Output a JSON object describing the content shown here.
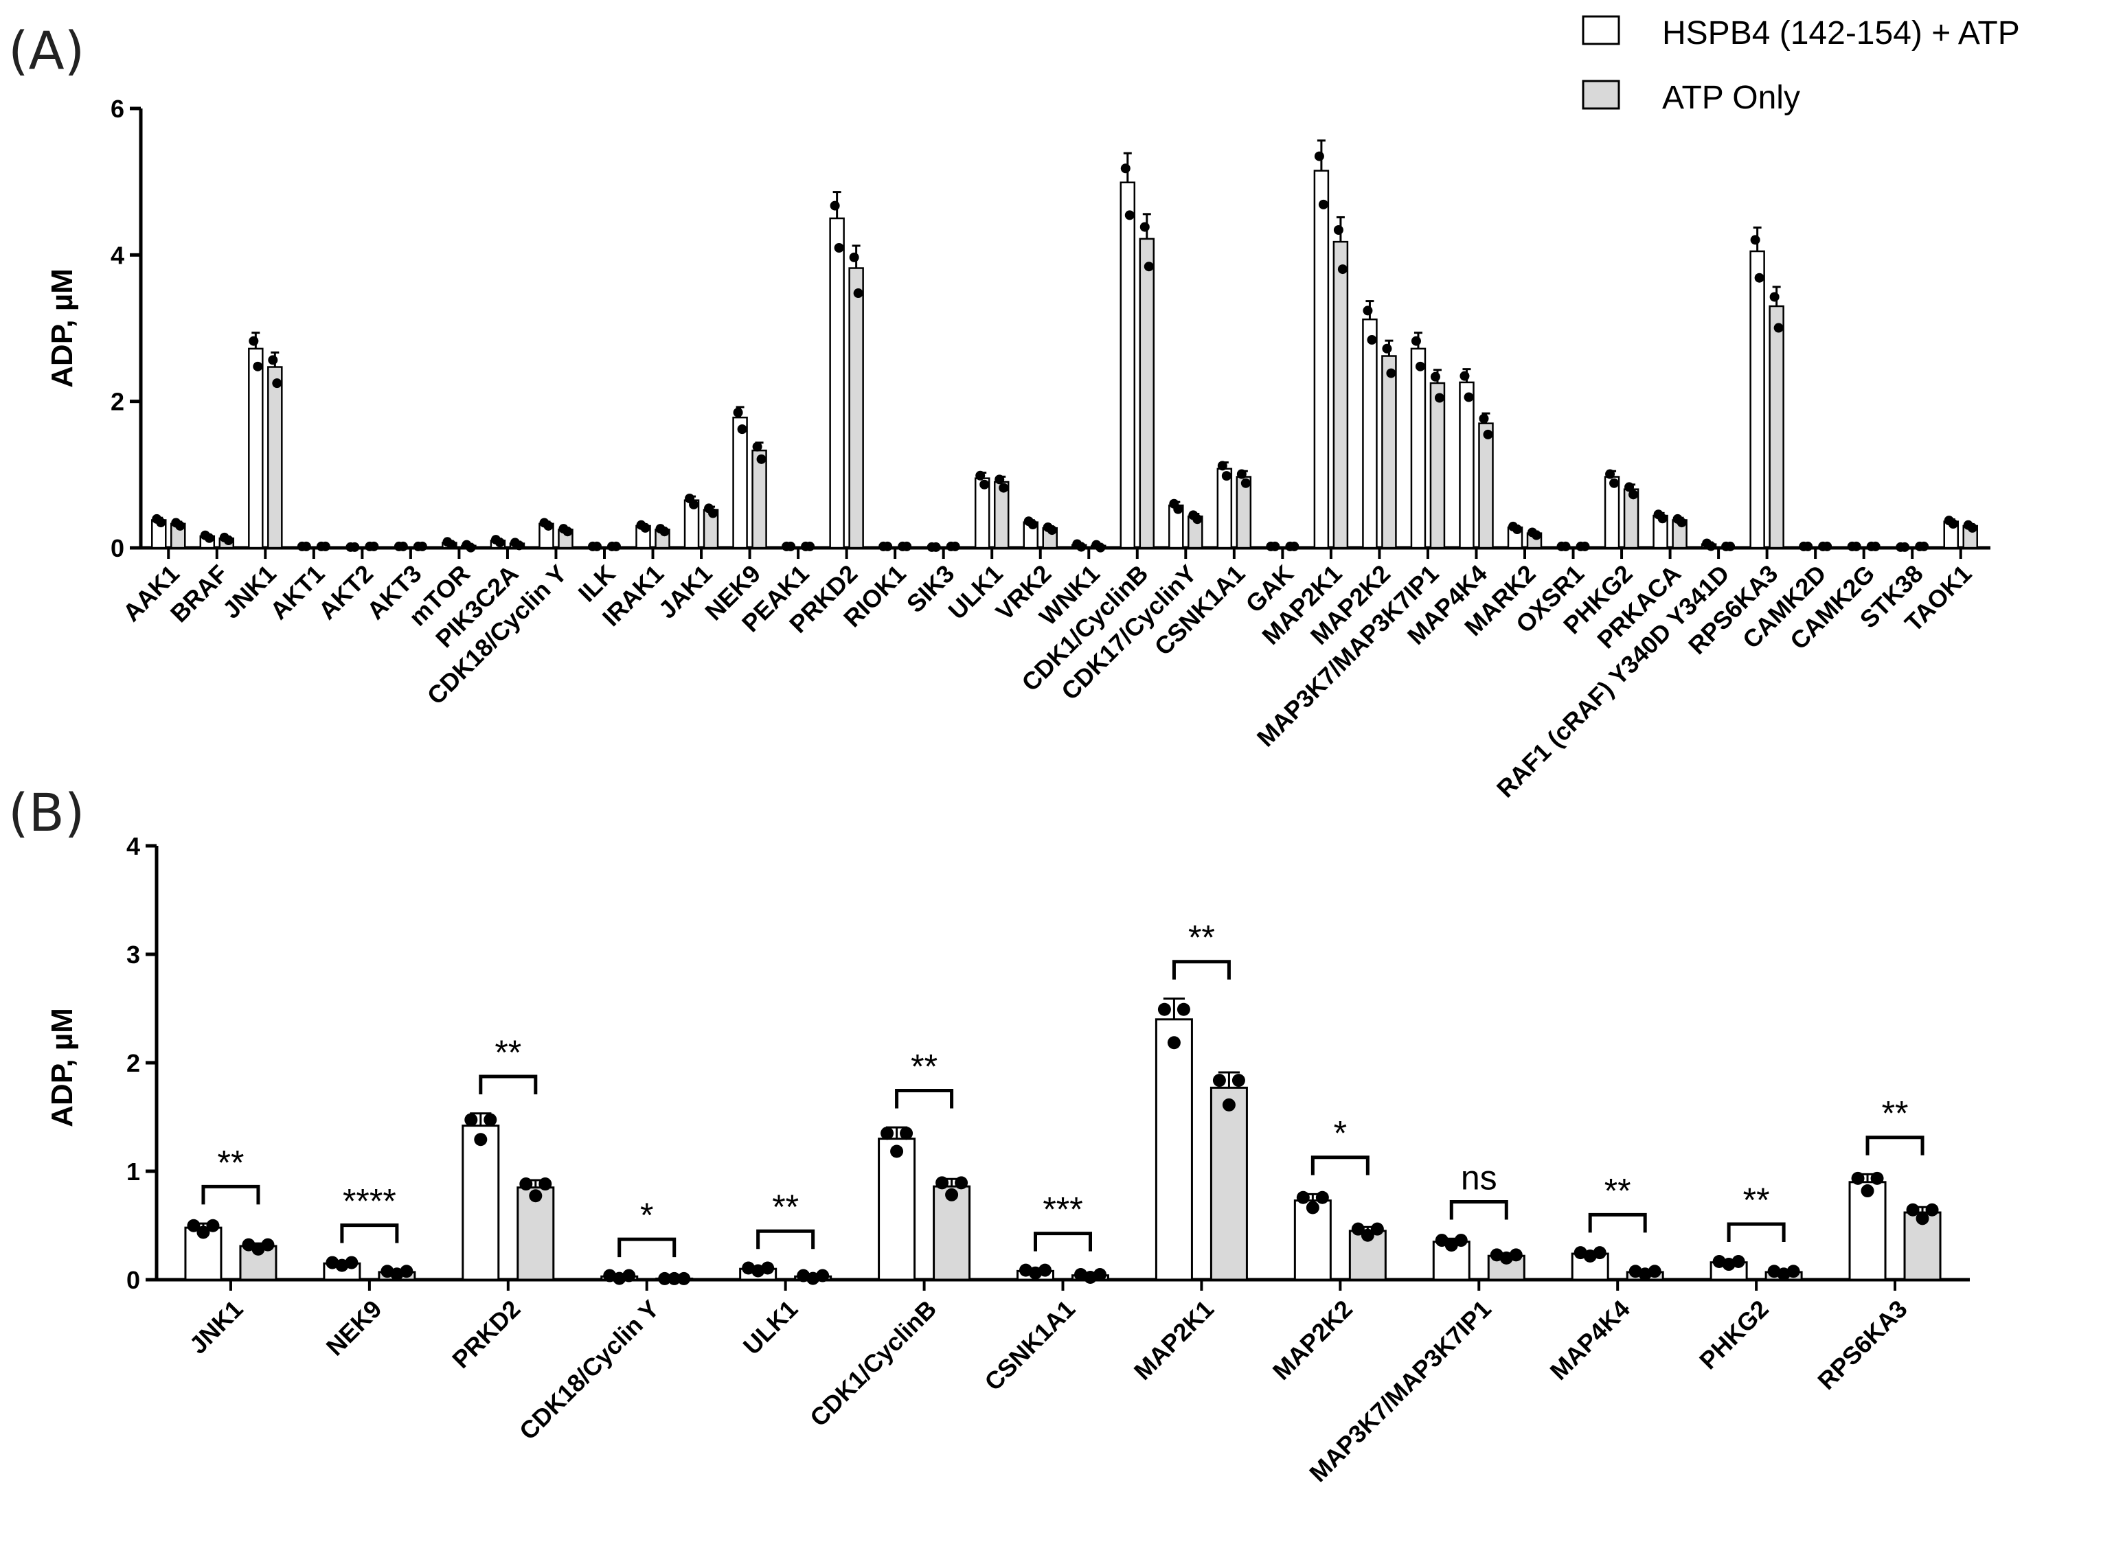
{
  "legend": [
    {
      "label": "HSPB4 (142-154) + ATP",
      "color": "#ffffff"
    },
    {
      "label": "ATP Only",
      "color": "#d9d9d9"
    }
  ],
  "chart_data": [
    {
      "panel_label": "(A)",
      "type": "bar",
      "ylabel": "ADP, µM",
      "ylim": [
        0,
        6
      ],
      "yticks": [
        "0",
        "2",
        "4",
        "6"
      ],
      "categories": [
        "AAK1",
        "BRAF",
        "JNK1",
        "AKT1",
        "AKT2",
        "AKT3",
        "mTOR",
        "PIK3C2A",
        "CDK18/Cyclin Y",
        "ILK",
        "IRAK1",
        "JAK1",
        "NEK9",
        "PEAK1",
        "PRKD2",
        "RIOK1",
        "SIK3",
        "ULK1",
        "VRK2",
        "WNK1",
        "CDK1/CyclinB",
        "CDK17/CyclinY",
        "CSNK1A1",
        "GAK",
        "MAP2K1",
        "MAP2K2",
        "MAP3K7/MAP3K7IP1",
        "MAP4K4",
        "MARK2",
        "OXSR1",
        "PHKG2",
        "PRKACA",
        "RAF1 (cRAF) Y340D Y341D",
        "RPS6KA3",
        "CAMK2D",
        "CAMK2G",
        "STK38",
        "TAOK1"
      ],
      "series": [
        {
          "name": "HSPB4 (142-154) + ATP",
          "values": [
            0.38,
            0.16,
            2.72,
            0,
            0.01,
            0,
            0.07,
            0.1,
            0.33,
            0,
            0.3,
            0.65,
            1.78,
            0,
            4.5,
            0,
            0.01,
            0.95,
            0.35,
            0.04,
            4.99,
            0.58,
            1.08,
            0,
            5.15,
            3.12,
            2.72,
            2.26,
            0.28,
            0,
            0.97,
            0.44,
            0.05,
            4.05,
            0,
            0,
            0.01,
            0.36
          ]
        },
        {
          "name": "ATP Only",
          "values": [
            0.33,
            0.13,
            2.47,
            0,
            0,
            0,
            0.03,
            0.06,
            0.25,
            0,
            0.25,
            0.52,
            1.33,
            0,
            3.82,
            0,
            0,
            0.9,
            0.27,
            0.03,
            4.22,
            0.43,
            0.97,
            0,
            4.18,
            2.62,
            2.25,
            1.7,
            0.2,
            0,
            0.8,
            0.38,
            0,
            3.3,
            0,
            0,
            0,
            0.3
          ]
        }
      ]
    },
    {
      "panel_label": "(B)",
      "type": "bar",
      "ylabel": "ADP, µM",
      "ylim": [
        0,
        4
      ],
      "yticks": [
        "0",
        "1",
        "2",
        "3",
        "4"
      ],
      "categories": [
        "JNK1",
        "NEK9",
        "PRKD2",
        "CDK18/Cyclin Y",
        "ULK1",
        "CDK1/CyclinB",
        "CSNK1A1",
        "MAP2K1",
        "MAP2K2",
        "MAP3K7/MAP3K7IP1",
        "MAP4K4",
        "PHKG2",
        "RPS6KA3"
      ],
      "series": [
        {
          "name": "HSPB4 (142-154) + ATP",
          "values": [
            0.48,
            0.15,
            1.42,
            0.03,
            0.1,
            1.3,
            0.08,
            2.4,
            0.73,
            0.35,
            0.24,
            0.16,
            0.9
          ]
        },
        {
          "name": "ATP Only",
          "values": [
            0.31,
            0.07,
            0.85,
            0.01,
            0.03,
            0.86,
            0.04,
            1.77,
            0.45,
            0.22,
            0.07,
            0.07,
            0.62
          ]
        }
      ],
      "significance": [
        "**",
        "****",
        "**",
        "*",
        "**",
        "**",
        "***",
        "**",
        "*",
        "ns",
        "**",
        "**",
        "**"
      ]
    }
  ]
}
